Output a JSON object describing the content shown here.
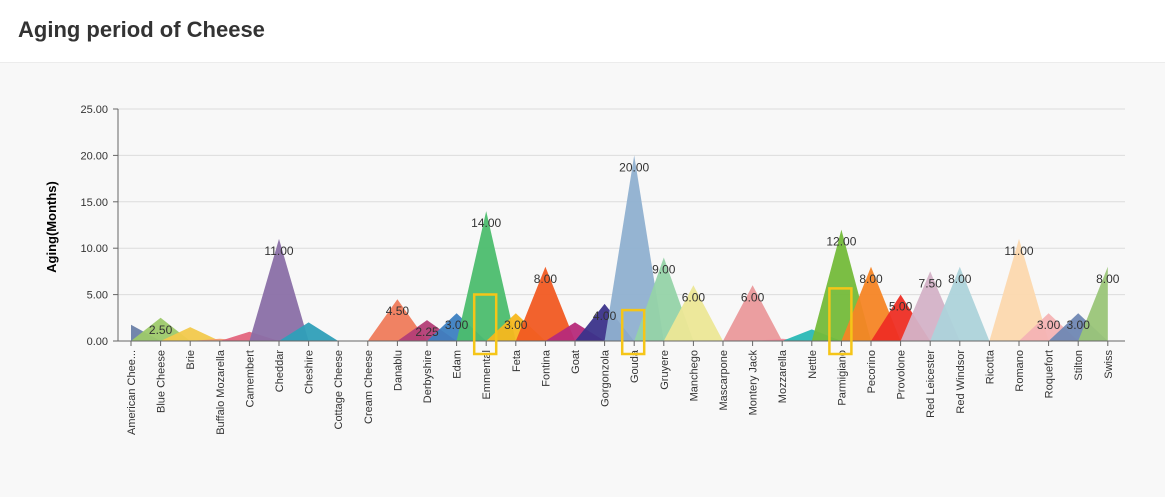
{
  "header": {
    "title": "Aging period of Cheese"
  },
  "chart_data": {
    "type": "area",
    "title": "Aging period of Cheese",
    "xlabel": "",
    "ylabel": "Aging(Months)",
    "ylim": [
      0,
      25
    ],
    "yticks": [
      "0.00",
      "5.00",
      "10.00",
      "15.00",
      "20.00",
      "25.00"
    ],
    "grid": true,
    "categories": [
      "American Chee...",
      "Blue Cheese",
      "Brie",
      "Buffalo Mozarella",
      "Camembert",
      "Cheddar",
      "Cheshire",
      "Cottage Cheese",
      "Cream Cheese",
      "Danablu",
      "Derbyshire",
      "Edam",
      "Emmental",
      "Feta",
      "Fontina",
      "Goat",
      "Gorgonzola",
      "Gouda",
      "Gruyere",
      "Manchego",
      "Mascarpone",
      "Montery Jack",
      "Mozzarella",
      "Nettle",
      "Parmigiano",
      "Pecorino",
      "Provolone",
      "Red Leicester",
      "Red Windsor",
      "Ricotta",
      "Romano",
      "Roquefort",
      "Stilton",
      "Swiss"
    ],
    "values": [
      1.75,
      2.5,
      1.5,
      0.25,
      1,
      11,
      2,
      0,
      0,
      4.5,
      2.25,
      3,
      14,
      3,
      8,
      2,
      4,
      20,
      9,
      6,
      0,
      6,
      0.25,
      1.25,
      12,
      8,
      5,
      7.5,
      8,
      0,
      11,
      3,
      3,
      8
    ],
    "data_labels": [
      "",
      "2.50",
      "",
      "",
      "",
      "11.00",
      "",
      "",
      "",
      "4.50",
      "2.25",
      "3.00",
      "14.00",
      "3.00",
      "8.00",
      "",
      "4.00",
      "20.00",
      "9.00",
      "6.00",
      "",
      "6.00",
      "",
      "",
      "12.00",
      "8.00",
      "5.00",
      "7.50",
      "8.00",
      "",
      "11.00",
      "3.00",
      "3.00",
      "8.00"
    ],
    "highlighted": [
      "Emmental",
      "Gouda",
      "Parmigiano"
    ],
    "colors": [
      "#6a7fa8",
      "#9dc96a",
      "#f2c94c",
      "#f29a72",
      "#e3657d",
      "#8a6fa6",
      "#2f9fb8",
      "#a3c96b",
      "#f6d47a",
      "#ef7b5b",
      "#b33d76",
      "#3c7fc1",
      "#4cbd6e",
      "#f7b71d",
      "#f15a22",
      "#b62a7a",
      "#3b338a",
      "#8fb0d0",
      "#95d3a8",
      "#ece796",
      "#ece796",
      "#ea999b",
      "#f08d9c",
      "#2ab8b5",
      "#74bb3a",
      "#f68525",
      "#ee2e24",
      "#d4b2c7",
      "#add3da",
      "#b4dca4",
      "#fcd8ae",
      "#f4b3b4",
      "#6f87b3",
      "#9ac578"
    ],
    "highlight_color": "#f5c518"
  }
}
